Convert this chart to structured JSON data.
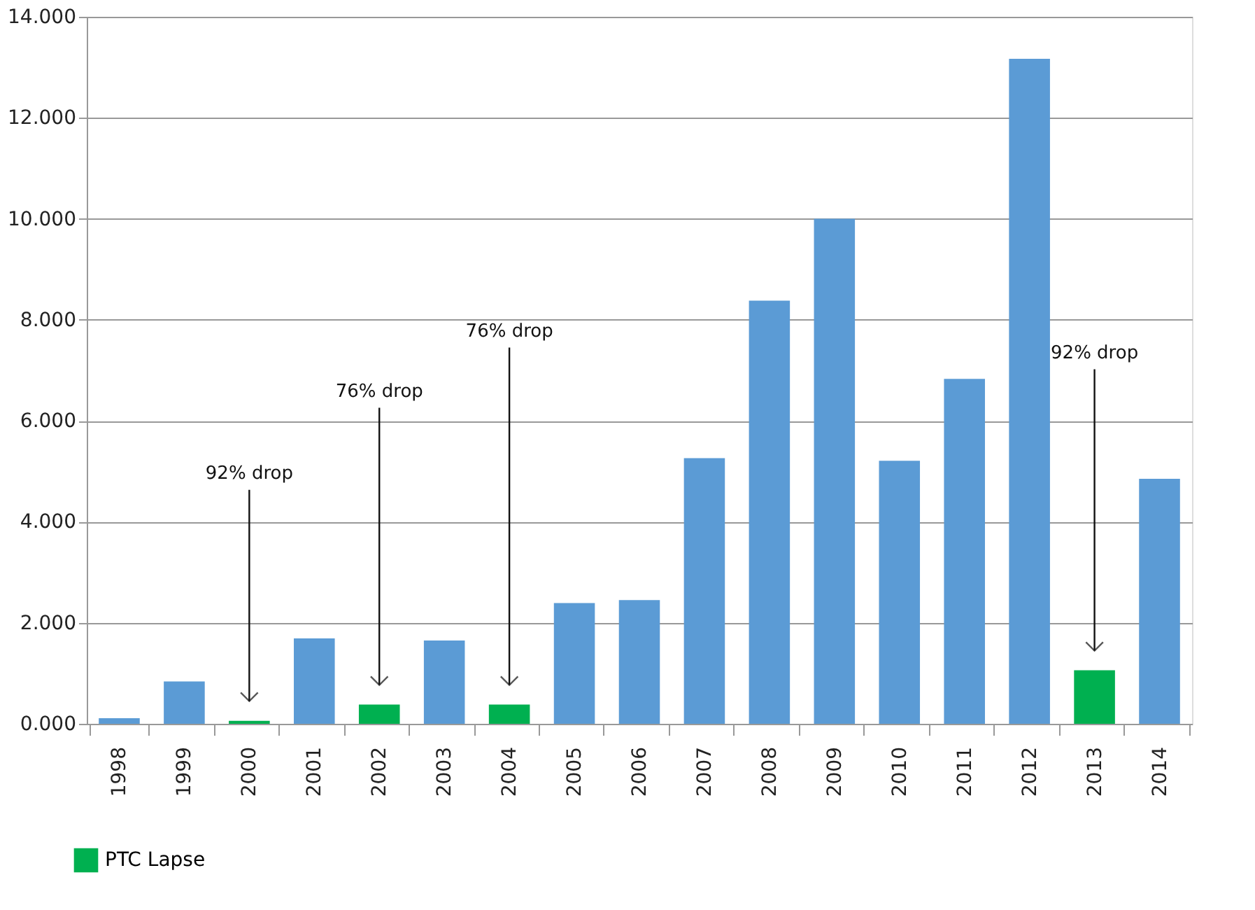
{
  "chart_data": {
    "type": "bar",
    "categories": [
      "1998",
      "1999",
      "2000",
      "2001",
      "2002",
      "2003",
      "2004",
      "2005",
      "2006",
      "2007",
      "2008",
      "2009",
      "2010",
      "2011",
      "2012",
      "2013",
      "2014"
    ],
    "series": [
      {
        "color": "#5b9bd5",
        "values": [
          0.11,
          0.84,
          null,
          1.69,
          null,
          1.65,
          null,
          2.39,
          2.45,
          5.26,
          8.38,
          10.0,
          5.21,
          6.83,
          13.17,
          null,
          4.85
        ]
      },
      {
        "name": "PTC Lapse",
        "color": "#00b050",
        "values": [
          null,
          null,
          0.06,
          null,
          0.38,
          null,
          0.38,
          null,
          null,
          null,
          null,
          null,
          null,
          null,
          null,
          1.06,
          null
        ]
      }
    ],
    "ylim": [
      0,
      14
    ],
    "yticks": [
      {
        "value": 0,
        "label": "0.000"
      },
      {
        "value": 2,
        "label": "2.000"
      },
      {
        "value": 4,
        "label": "4.000"
      },
      {
        "value": 6,
        "label": "6.000"
      },
      {
        "value": 8,
        "label": "8.000"
      },
      {
        "value": 10,
        "label": "10.000"
      },
      {
        "value": 12,
        "label": "12.000"
      },
      {
        "value": 14,
        "label": "14.000"
      }
    ],
    "annotations": [
      "92% drop",
      "76% drop",
      "76% drop",
      "92% drop"
    ],
    "grid": "y",
    "legend": "bottom left"
  }
}
